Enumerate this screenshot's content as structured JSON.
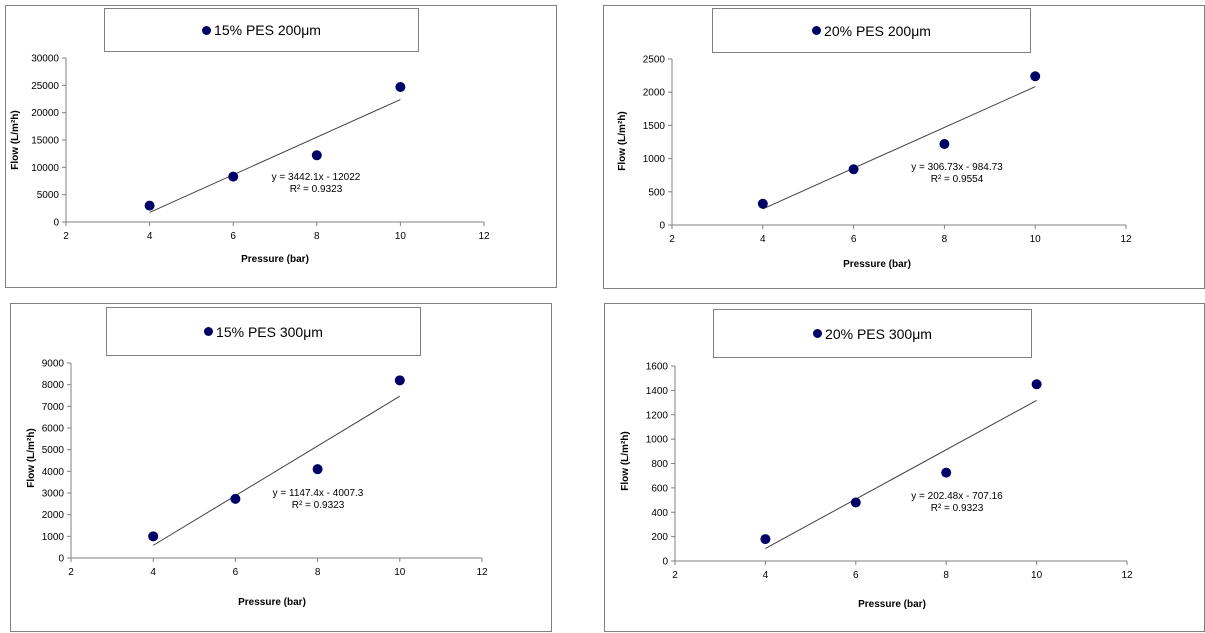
{
  "chart_data": [
    {
      "type": "scatter",
      "legend": "15% PES 200μm",
      "xlabel": "Pressure (bar)",
      "ylabel": "Flow (L/m²h)",
      "xlim": [
        2,
        12
      ],
      "xticks": [
        2,
        4,
        6,
        8,
        10,
        12
      ],
      "ylim": [
        0,
        30000
      ],
      "yticks": [
        0,
        5000,
        10000,
        15000,
        20000,
        25000,
        30000
      ],
      "points": [
        {
          "x": 4,
          "y": 3000
        },
        {
          "x": 6,
          "y": 8300
        },
        {
          "x": 8,
          "y": 12200
        },
        {
          "x": 10,
          "y": 24700
        }
      ],
      "trendline": {
        "slope": 3442.1,
        "intercept": -12022
      },
      "equation": "y = 3442.1x - 12022",
      "r2": "R² = 0.9323",
      "colors": {
        "marker": "#000066",
        "trendline": "#404040"
      }
    },
    {
      "type": "scatter",
      "legend": "20% PES 200μm",
      "xlabel": "Pressure (bar)",
      "ylabel": "Flow (L/m²h)",
      "xlim": [
        2,
        12
      ],
      "xticks": [
        2,
        4,
        6,
        8,
        10,
        12
      ],
      "ylim": [
        0,
        2500
      ],
      "yticks": [
        0,
        500,
        1000,
        1500,
        2000,
        2500
      ],
      "points": [
        {
          "x": 4,
          "y": 320
        },
        {
          "x": 6,
          "y": 840
        },
        {
          "x": 8,
          "y": 1220
        },
        {
          "x": 10,
          "y": 2240
        }
      ],
      "trendline": {
        "slope": 306.73,
        "intercept": -984.73
      },
      "equation": "y = 306.73x - 984.73",
      "r2": "R² = 0.9554",
      "colors": {
        "marker": "#000066",
        "trendline": "#404040"
      }
    },
    {
      "type": "scatter",
      "legend": "15% PES 300μm",
      "xlabel": "Pressure (bar)",
      "ylabel": "Flow (L/m²h)",
      "xlim": [
        2,
        12
      ],
      "xticks": [
        2,
        4,
        6,
        8,
        10,
        12
      ],
      "ylim": [
        0,
        9000
      ],
      "yticks": [
        0,
        1000,
        2000,
        3000,
        4000,
        5000,
        6000,
        7000,
        8000,
        9000
      ],
      "points": [
        {
          "x": 4,
          "y": 1000
        },
        {
          "x": 6,
          "y": 2730
        },
        {
          "x": 8,
          "y": 4100
        },
        {
          "x": 10,
          "y": 8200
        }
      ],
      "trendline": {
        "slope": 1147.4,
        "intercept": -4007.3
      },
      "equation": "y = 1147.4x - 4007.3",
      "r2": "R² = 0.9323",
      "colors": {
        "marker": "#000066",
        "trendline": "#404040"
      }
    },
    {
      "type": "scatter",
      "legend": "20% PES 300μm",
      "xlabel": "Pressure (bar)",
      "ylabel": "Flow (L/m²h)",
      "xlim": [
        2,
        12
      ],
      "xticks": [
        2,
        4,
        6,
        8,
        10,
        12
      ],
      "ylim": [
        0,
        1600
      ],
      "yticks": [
        0,
        200,
        400,
        600,
        800,
        1000,
        1200,
        1400,
        1600
      ],
      "points": [
        {
          "x": 4,
          "y": 180
        },
        {
          "x": 6,
          "y": 480
        },
        {
          "x": 8,
          "y": 725
        },
        {
          "x": 10,
          "y": 1450
        }
      ],
      "trendline": {
        "slope": 202.48,
        "intercept": -707.16
      },
      "equation": "y = 202.48x - 707.16",
      "r2": "R² = 0.9323",
      "colors": {
        "marker": "#000066",
        "trendline": "#404040"
      }
    }
  ]
}
